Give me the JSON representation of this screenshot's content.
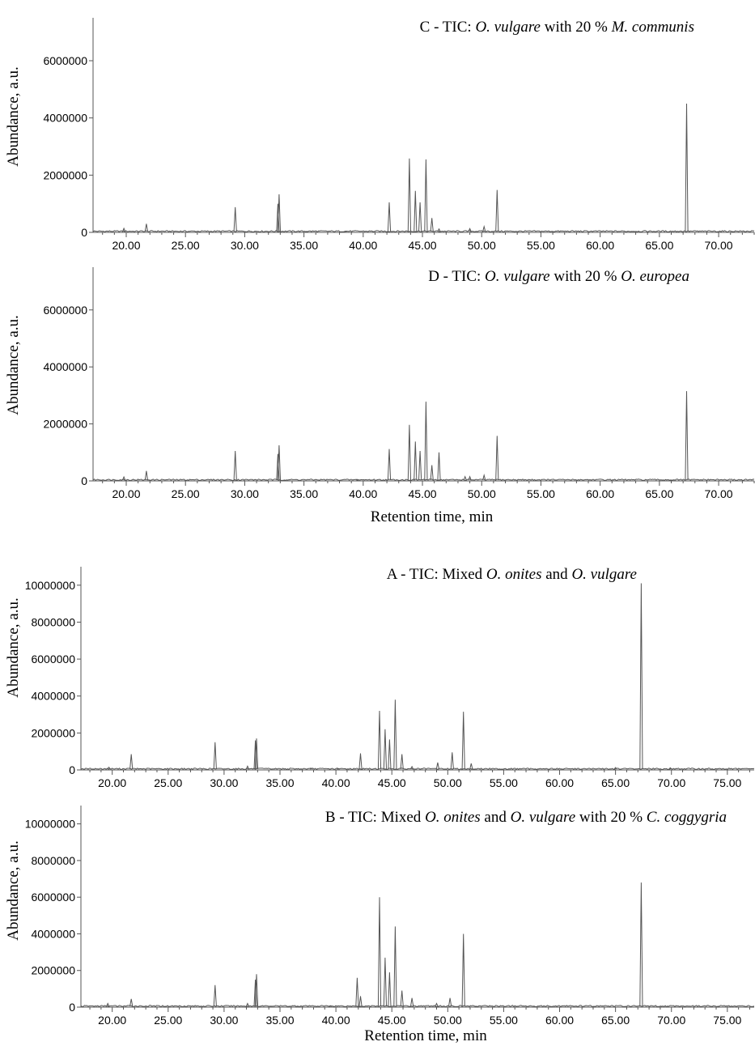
{
  "chart_data": [
    {
      "type": "line",
      "title": {
        "prefix": "C - TIC: ",
        "parts": [
          {
            "t": "O. vulgare",
            "i": true
          },
          {
            "t": " with 20 % ",
            "i": false
          },
          {
            "t": "M. communis",
            "i": true
          }
        ]
      },
      "ylabel": "Abundance, a.u.",
      "xlabel": "",
      "xlim": [
        17.2,
        73.0
      ],
      "ylim": [
        0,
        7500000
      ],
      "x_ticks": [
        "20.00",
        "25.00",
        "30.00",
        "35.00",
        "40.00",
        "45.00",
        "50.00",
        "55.00",
        "60.00",
        "65.00",
        "70.00"
      ],
      "y_ticks": [
        "0",
        "2000000",
        "4000000",
        "6000000"
      ],
      "series": [
        {
          "peaks": [
            [
              19.8,
              140000
            ],
            [
              21.7,
              300000
            ],
            [
              29.2,
              880000
            ],
            [
              32.8,
              1000000
            ],
            [
              32.9,
              1330000
            ],
            [
              38.5,
              40000
            ],
            [
              42.2,
              1050000
            ],
            [
              43.9,
              2580000
            ],
            [
              44.4,
              1450000
            ],
            [
              44.8,
              1050000
            ],
            [
              45.3,
              2550000
            ],
            [
              45.8,
              500000
            ],
            [
              46.4,
              120000
            ],
            [
              49.0,
              130000
            ],
            [
              50.2,
              200000
            ],
            [
              51.3,
              1480000
            ],
            [
              67.3,
              4500000
            ]
          ]
        }
      ]
    },
    {
      "type": "line",
      "title": {
        "prefix": "D - TIC: ",
        "parts": [
          {
            "t": "O. vulgare",
            "i": true
          },
          {
            "t": " with 20 % ",
            "i": false
          },
          {
            "t": "O. europea",
            "i": true
          }
        ]
      },
      "ylabel": "Abundance, a.u.",
      "xlabel": "Retention time, min",
      "xlim": [
        17.2,
        73.0
      ],
      "ylim": [
        0,
        7500000
      ],
      "x_ticks": [
        "20.00",
        "25.00",
        "30.00",
        "35.00",
        "40.00",
        "45.00",
        "50.00",
        "55.00",
        "60.00",
        "65.00",
        "70.00"
      ],
      "y_ticks": [
        "0",
        "2000000",
        "4000000",
        "6000000"
      ],
      "series": [
        {
          "peaks": [
            [
              19.8,
              140000
            ],
            [
              21.7,
              350000
            ],
            [
              29.2,
              1050000
            ],
            [
              32.8,
              950000
            ],
            [
              32.9,
              1250000
            ],
            [
              39.5,
              50000
            ],
            [
              42.2,
              1120000
            ],
            [
              43.9,
              1970000
            ],
            [
              44.4,
              1380000
            ],
            [
              44.8,
              1050000
            ],
            [
              45.3,
              2780000
            ],
            [
              45.8,
              550000
            ],
            [
              46.4,
              1000000
            ],
            [
              48.6,
              150000
            ],
            [
              49.0,
              150000
            ],
            [
              50.2,
              200000
            ],
            [
              51.3,
              1580000
            ],
            [
              67.3,
              3150000
            ]
          ]
        }
      ]
    },
    {
      "type": "line",
      "title": {
        "prefix": "A - TIC: ",
        "parts": [
          {
            "t": "Mixed ",
            "i": false
          },
          {
            "t": "O. onites",
            "i": true
          },
          {
            "t": " and ",
            "i": false
          },
          {
            "t": "O. vulgare",
            "i": true
          }
        ]
      },
      "ylabel": "Abundance, a.u.",
      "xlabel": "",
      "xlim": [
        17.2,
        77.4
      ],
      "ylim": [
        0,
        11000000
      ],
      "x_ticks": [
        "20.00",
        "25.00",
        "30.00",
        "35.00",
        "40.00",
        "45.00",
        "50.00",
        "55.00",
        "60.00",
        "65.00",
        "70.00",
        "75.00"
      ],
      "y_ticks": [
        "0",
        "2000000",
        "4000000",
        "6000000",
        "8000000",
        "10000000"
      ],
      "series": [
        {
          "peaks": [
            [
              19.7,
              150000
            ],
            [
              21.7,
              850000
            ],
            [
              29.2,
              1500000
            ],
            [
              32.1,
              200000
            ],
            [
              32.8,
              1600000
            ],
            [
              32.9,
              1700000
            ],
            [
              37.8,
              80000
            ],
            [
              40.2,
              60000
            ],
            [
              42.2,
              900000
            ],
            [
              43.9,
              3200000
            ],
            [
              44.4,
              2200000
            ],
            [
              44.8,
              1650000
            ],
            [
              45.3,
              3800000
            ],
            [
              45.9,
              850000
            ],
            [
              46.8,
              180000
            ],
            [
              49.1,
              400000
            ],
            [
              50.4,
              950000
            ],
            [
              51.4,
              3150000
            ],
            [
              52.1,
              350000
            ],
            [
              65.0,
              130000
            ],
            [
              67.3,
              10100000
            ],
            [
              69.9,
              120000
            ]
          ]
        }
      ]
    },
    {
      "type": "line",
      "title": {
        "prefix": "B - TIC: ",
        "parts": [
          {
            "t": "Mixed ",
            "i": false
          },
          {
            "t": "O. onites",
            "i": true
          },
          {
            "t": " and ",
            "i": false
          },
          {
            "t": "O. vulgare",
            "i": true
          },
          {
            "t": " with 20 % ",
            "i": false
          },
          {
            "t": "C. coggygria",
            "i": true
          }
        ]
      },
      "ylabel": "Abundance, a.u.",
      "xlabel": "Retention time, min",
      "xlim": [
        17.2,
        77.4
      ],
      "ylim": [
        0,
        11000000
      ],
      "x_ticks": [
        "20.00",
        "25.00",
        "30.00",
        "35.00",
        "40.00",
        "45.00",
        "50.00",
        "55.00",
        "60.00",
        "65.00",
        "70.00",
        "75.00"
      ],
      "y_ticks": [
        "0",
        "2000000",
        "4000000",
        "6000000",
        "8000000",
        "10000000"
      ],
      "series": [
        {
          "peaks": [
            [
              19.6,
              200000
            ],
            [
              21.7,
              450000
            ],
            [
              29.2,
              1200000
            ],
            [
              32.1,
              200000
            ],
            [
              32.8,
              1500000
            ],
            [
              32.9,
              1800000
            ],
            [
              39.5,
              80000
            ],
            [
              41.9,
              1600000
            ],
            [
              42.2,
              600000
            ],
            [
              43.9,
              6000000
            ],
            [
              44.4,
              2700000
            ],
            [
              44.8,
              1900000
            ],
            [
              45.3,
              4400000
            ],
            [
              45.9,
              900000
            ],
            [
              46.8,
              500000
            ],
            [
              49.0,
              200000
            ],
            [
              50.2,
              500000
            ],
            [
              51.4,
              4000000
            ],
            [
              67.3,
              6800000
            ]
          ]
        }
      ]
    }
  ]
}
